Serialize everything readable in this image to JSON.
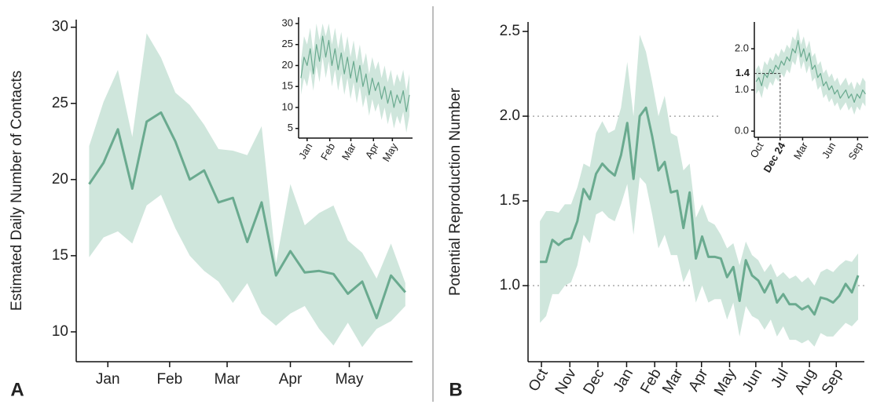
{
  "chart_data": [
    {
      "type": "line",
      "panel_label": "A",
      "ylabel": "Estimated Daily Number of Contacts",
      "color": "#6aaa8f",
      "band_color": "#cfe6dc",
      "x": [
        0,
        1,
        2,
        3,
        4,
        5,
        6,
        7,
        8,
        9,
        10,
        11,
        12,
        13,
        14,
        15,
        16,
        17,
        18,
        19,
        20,
        21,
        22
      ],
      "values": [
        19.7,
        21.1,
        23.3,
        19.4,
        23.8,
        24.4,
        22.5,
        20.0,
        20.6,
        18.5,
        18.8,
        15.9,
        18.5,
        13.7,
        15.3,
        13.9,
        14.0,
        13.8,
        12.5,
        13.3,
        10.9,
        13.7,
        12.6
      ],
      "upper": [
        22.2,
        25.1,
        27.2,
        22.8,
        29.6,
        28.0,
        25.7,
        24.9,
        23.6,
        22.0,
        21.9,
        21.6,
        23.5,
        14.5,
        19.7,
        17.0,
        17.8,
        18.3,
        16.0,
        15.2,
        13.5,
        15.8,
        13.2
      ],
      "lower": [
        14.9,
        16.2,
        16.6,
        15.8,
        18.3,
        19.0,
        16.8,
        15.0,
        14.0,
        13.3,
        11.9,
        13.2,
        11.2,
        10.4,
        11.2,
        11.7,
        10.2,
        9.1,
        10.6,
        9.0,
        10.2,
        10.7,
        11.7
      ],
      "xlim": [
        -0.9,
        22.5
      ],
      "xticks": [
        {
          "value": 1.3,
          "label": "Jan"
        },
        {
          "value": 5.6,
          "label": "Feb"
        },
        {
          "value": 9.6,
          "label": "Mar"
        },
        {
          "value": 14.0,
          "label": "Apr"
        },
        {
          "value": 18.1,
          "label": "May"
        }
      ],
      "ylim": [
        8.04,
        30.5
      ],
      "yticks": [
        10,
        15,
        20,
        25,
        30
      ]
    },
    {
      "type": "line",
      "color": "#6aaa8f",
      "band_color": "#cfe6dc",
      "x": [
        0,
        1,
        2,
        3,
        4,
        5,
        6,
        7,
        8,
        9,
        10,
        11,
        12,
        13,
        14,
        15,
        16,
        17,
        18,
        19,
        20,
        21,
        22,
        23,
        24,
        25,
        26,
        27,
        28,
        29,
        30,
        31,
        32,
        33,
        34,
        35
      ],
      "values": [
        17,
        22,
        20,
        24,
        18,
        25,
        21,
        27,
        22,
        26,
        20,
        24,
        19,
        23,
        18,
        22,
        17,
        21,
        16,
        20,
        15,
        18,
        13,
        17,
        14,
        16,
        12,
        15,
        11,
        14,
        10,
        13,
        11,
        14,
        9,
        13
      ],
      "upper": [
        21,
        27,
        25,
        29,
        23,
        30,
        26,
        30,
        27,
        30,
        25,
        29,
        24,
        28,
        23,
        27,
        22,
        26,
        21,
        25,
        20,
        23,
        18,
        22,
        19,
        21,
        17,
        20,
        16,
        19,
        15,
        18,
        16,
        19,
        14,
        18
      ],
      "lower": [
        13,
        17,
        15,
        19,
        14,
        20,
        16,
        22,
        17,
        21,
        15,
        19,
        14,
        18,
        13,
        17,
        12,
        16,
        11,
        15,
        10,
        13,
        8,
        12,
        9,
        11,
        7,
        10,
        6,
        9,
        5,
        8,
        6,
        9,
        4,
        8
      ],
      "xlim": [
        -0.75,
        36
      ],
      "xticks": [
        {
          "value": 2.0,
          "label": "Jan"
        },
        {
          "value": 9.3,
          "label": "Feb"
        },
        {
          "value": 16.1,
          "label": "Mar"
        },
        {
          "value": 23.4,
          "label": "Apr"
        },
        {
          "value": 29.5,
          "label": "May"
        }
      ],
      "ylim": [
        2.7,
        31.5
      ],
      "yticks": [
        5,
        10,
        15,
        20,
        25,
        30
      ]
    },
    {
      "type": "line",
      "panel_label": "B",
      "ylabel": "Potential Reproduction Number",
      "color": "#6aaa8f",
      "band_color": "#cfe6dc",
      "x": [
        0,
        1,
        2,
        3,
        4,
        5,
        6,
        7,
        8,
        9,
        10,
        11,
        12,
        13,
        14,
        15,
        16,
        17,
        18,
        19,
        20,
        21,
        22,
        23,
        24,
        25,
        26,
        27,
        28,
        29,
        30,
        31,
        32,
        33,
        34,
        35,
        36,
        37,
        38,
        39,
        40,
        41,
        42,
        43,
        44,
        45,
        46,
        47,
        48,
        49,
        50,
        51
      ],
      "values": [
        1.14,
        1.14,
        1.27,
        1.24,
        1.27,
        1.28,
        1.38,
        1.57,
        1.51,
        1.66,
        1.72,
        1.68,
        1.65,
        1.77,
        1.96,
        1.63,
        2.0,
        2.05,
        1.88,
        1.68,
        1.73,
        1.55,
        1.56,
        1.34,
        1.55,
        1.16,
        1.29,
        1.17,
        1.17,
        1.16,
        1.05,
        1.11,
        0.91,
        1.15,
        1.06,
        1.03,
        0.96,
        1.03,
        0.9,
        0.95,
        0.89,
        0.89,
        0.86,
        0.88,
        0.83,
        0.93,
        0.92,
        0.9,
        0.94,
        1.01,
        0.96,
        1.06
      ],
      "upper": [
        1.38,
        1.44,
        1.44,
        1.43,
        1.48,
        1.48,
        1.58,
        1.72,
        1.7,
        1.9,
        1.97,
        1.9,
        1.92,
        2.05,
        2.32,
        2.0,
        2.48,
        2.38,
        2.2,
        2.0,
        2.12,
        1.9,
        1.88,
        1.68,
        1.72,
        1.4,
        1.48,
        1.38,
        1.36,
        1.3,
        1.22,
        1.25,
        1.12,
        1.26,
        1.18,
        1.15,
        1.08,
        1.13,
        1.05,
        1.08,
        1.04,
        1.06,
        1.02,
        1.05,
        1.0,
        1.08,
        1.1,
        1.08,
        1.12,
        1.15,
        1.14,
        1.19
      ],
      "lower": [
        0.78,
        0.82,
        0.95,
        0.95,
        1.0,
        1.02,
        1.12,
        1.3,
        1.25,
        1.42,
        1.44,
        1.4,
        1.38,
        1.48,
        1.6,
        1.3,
        1.64,
        1.6,
        1.42,
        1.22,
        1.3,
        1.18,
        1.18,
        1.02,
        1.1,
        0.9,
        1.0,
        0.9,
        0.92,
        0.92,
        0.8,
        0.9,
        0.7,
        0.88,
        0.82,
        0.8,
        0.74,
        0.8,
        0.7,
        0.76,
        0.68,
        0.68,
        0.66,
        0.68,
        0.64,
        0.72,
        0.7,
        0.7,
        0.74,
        0.78,
        0.76,
        0.8
      ],
      "xlim": [
        -1.9,
        52.0
      ],
      "xticks": [
        {
          "value": 0.25,
          "label": "Oct"
        },
        {
          "value": 4.8,
          "label": "Nov"
        },
        {
          "value": 9.3,
          "label": "Dec"
        },
        {
          "value": 13.9,
          "label": "Jan"
        },
        {
          "value": 18.4,
          "label": "Feb"
        },
        {
          "value": 21.9,
          "label": "Mar"
        },
        {
          "value": 25.9,
          "label": "Apr"
        },
        {
          "value": 30.4,
          "label": "May"
        },
        {
          "value": 34.6,
          "label": "Jun"
        },
        {
          "value": 38.8,
          "label": "Jul"
        },
        {
          "value": 43.2,
          "label": "Aug"
        },
        {
          "value": 47.5,
          "label": "Sep"
        }
      ],
      "ylim": [
        0.551,
        2.556
      ],
      "yticks": [
        {
          "value": 1,
          "label": "1.0"
        },
        1.5,
        {
          "value": 2,
          "label": "2.0"
        },
        2.5
      ],
      "hlines": [
        2,
        1
      ]
    },
    {
      "type": "line",
      "color": "#6aaa8f",
      "band_color": "#cfe6dc",
      "x": [
        0,
        1,
        2,
        3,
        4,
        5,
        6,
        7,
        8,
        9,
        10,
        11,
        12,
        13,
        14,
        15,
        16,
        17,
        18,
        19,
        20,
        21,
        22,
        23,
        24,
        25,
        26,
        27,
        28,
        29,
        30,
        31,
        32,
        33,
        34,
        35,
        36,
        37,
        38,
        39
      ],
      "values": [
        1.2,
        1.3,
        1.1,
        1.4,
        1.3,
        1.5,
        1.4,
        1.6,
        1.5,
        1.7,
        1.6,
        1.8,
        1.7,
        2.0,
        1.9,
        2.2,
        1.8,
        2.0,
        1.7,
        1.9,
        1.5,
        1.6,
        1.3,
        1.4,
        1.1,
        1.2,
        1.0,
        1.1,
        0.9,
        1.0,
        0.8,
        0.9,
        1.0,
        0.8,
        0.9,
        0.7,
        0.9,
        0.8,
        1.0,
        0.9
      ],
      "upper": [
        1.5,
        1.6,
        1.4,
        1.7,
        1.6,
        1.8,
        1.7,
        1.9,
        1.8,
        2.0,
        1.9,
        2.1,
        2.0,
        2.3,
        2.2,
        2.5,
        2.1,
        2.3,
        2.0,
        2.2,
        1.8,
        1.9,
        1.6,
        1.7,
        1.4,
        1.5,
        1.3,
        1.4,
        1.2,
        1.3,
        1.1,
        1.2,
        1.3,
        1.1,
        1.2,
        1.0,
        1.2,
        1.1,
        1.3,
        1.2
      ],
      "lower": [
        0.9,
        1.0,
        0.8,
        1.1,
        1.0,
        1.2,
        1.1,
        1.3,
        1.2,
        1.4,
        1.3,
        1.5,
        1.4,
        1.7,
        1.6,
        1.9,
        1.5,
        1.7,
        1.4,
        1.6,
        1.2,
        1.3,
        1.0,
        1.1,
        0.8,
        0.9,
        0.7,
        0.8,
        0.6,
        0.7,
        0.5,
        0.6,
        0.7,
        0.5,
        0.6,
        0.4,
        0.6,
        0.5,
        0.7,
        0.6
      ],
      "xlim": [
        -0.6,
        40
      ],
      "xticks": [
        {
          "value": 0.8,
          "label": "Oct"
        },
        {
          "value": 8.6,
          "label": "Dec 24"
        },
        {
          "value": 16.6,
          "label": "Mar"
        },
        {
          "value": 26.5,
          "label": "Jun"
        },
        {
          "value": 36.2,
          "label": "Sep"
        }
      ],
      "ylim": [
        -0.15,
        2.65
      ],
      "yticks": [
        {
          "value": 0,
          "label": "0.0"
        },
        {
          "value": 1,
          "label": "1.0"
        },
        {
          "value": 2,
          "label": "2.0"
        }
      ],
      "annotation": {
        "x": 8.6,
        "y": 1.4
      }
    }
  ]
}
